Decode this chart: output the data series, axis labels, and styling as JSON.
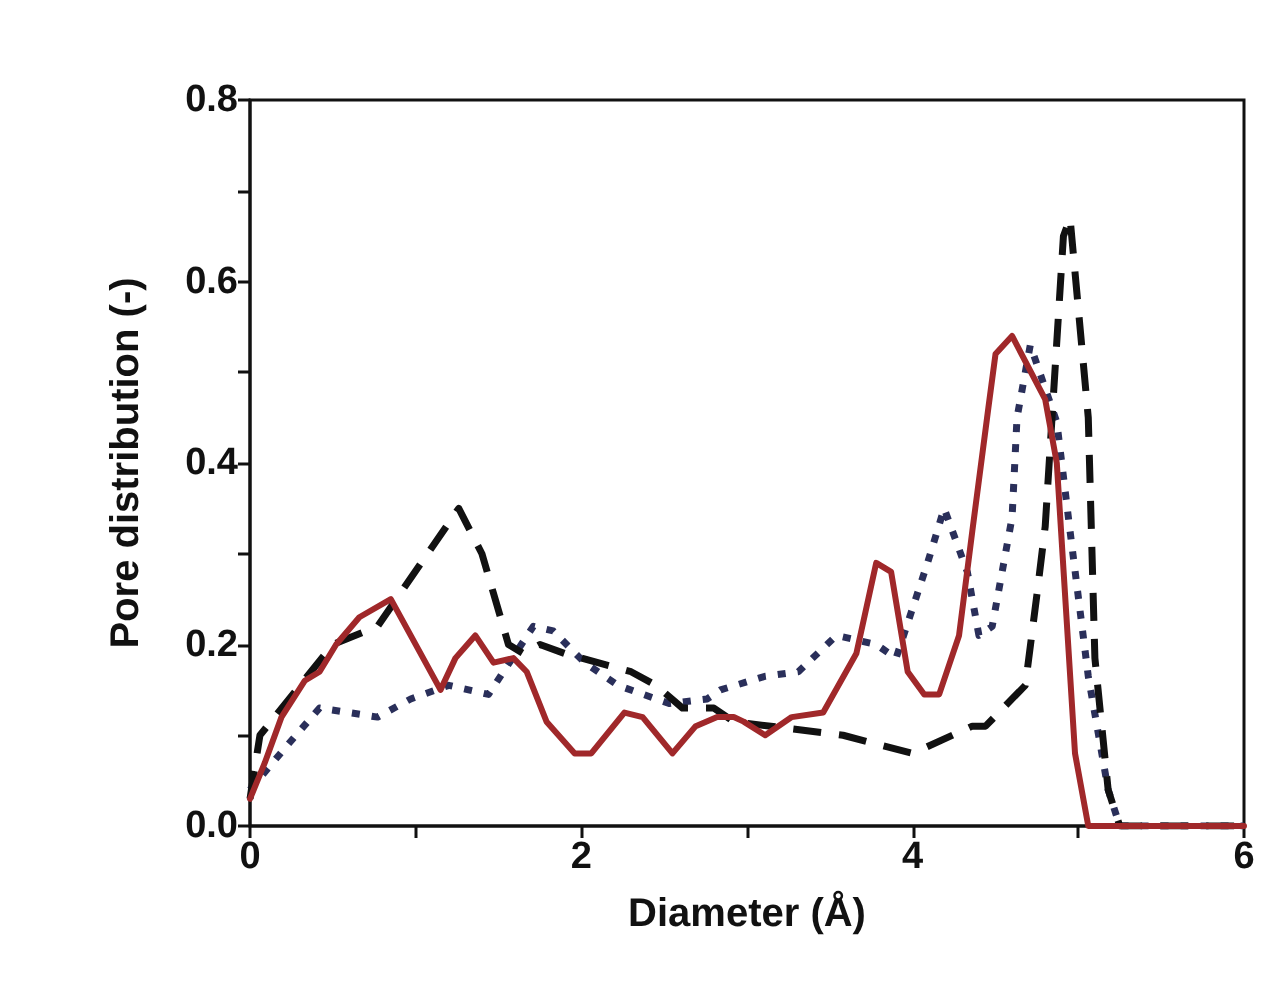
{
  "chart_data": {
    "type": "line",
    "xlabel": "Diameter (Å)",
    "ylabel": "Pore distribution (-)",
    "xlim": [
      0,
      6
    ],
    "xticks": [
      0,
      {
        "value": 1,
        "label": null
      },
      2,
      {
        "value": 3,
        "label": null
      },
      4,
      {
        "value": 5,
        "label": null
      },
      6
    ],
    "ylim": [
      0,
      0.8
    ],
    "yticks": [
      {
        "value": 0,
        "label": "0.0"
      },
      {
        "value": 0.1,
        "label": null
      },
      0.2,
      {
        "value": 0.3,
        "label": null
      },
      0.4,
      {
        "value": 0.5,
        "label": null
      },
      0.6,
      {
        "value": 0.7,
        "label": null
      },
      0.8
    ],
    "grid": false,
    "marker": "none",
    "series": [
      {
        "color": "#a0282a",
        "line_style": "solid",
        "x": [
          0,
          0.09,
          0.19,
          0.33,
          0.42,
          0.52,
          0.66,
          0.85,
          1.15,
          1.24,
          1.36,
          1.47,
          1.59,
          1.67,
          1.79,
          1.96,
          2.06,
          2.26,
          2.37,
          2.55,
          2.69,
          2.82,
          2.92,
          2.98,
          3.11,
          3.27,
          3.46,
          3.66,
          3.78,
          3.87,
          3.97,
          4.07,
          4.16,
          4.28,
          4.36,
          4.46,
          4.5,
          4.6,
          4.8,
          4.87,
          4.98,
          5.06,
          6
        ],
        "values": [
          0.03,
          0.07,
          0.12,
          0.16,
          0.17,
          0.2,
          0.23,
          0.25,
          0.15,
          0.185,
          0.21,
          0.18,
          0.185,
          0.17,
          0.115,
          0.08,
          0.08,
          0.125,
          0.12,
          0.08,
          0.11,
          0.12,
          0.12,
          0.115,
          0.1,
          0.12,
          0.125,
          0.19,
          0.29,
          0.28,
          0.17,
          0.145,
          0.145,
          0.21,
          0.325,
          0.465,
          0.52,
          0.54,
          0.47,
          0.4,
          0.08,
          0,
          0
        ]
      },
      {
        "color": "#111111",
        "line_style": "dashed",
        "x": [
          0,
          0.06,
          0.5,
          0.77,
          1.26,
          1.4,
          1.56,
          1.65,
          1.75,
          1.9,
          2.1,
          2.3,
          2.45,
          2.61,
          2.8,
          2.92,
          3.58,
          4.0,
          4.36,
          4.44,
          4.68,
          4.75,
          4.8,
          4.91,
          4.95,
          5.06,
          5.1,
          5.18,
          5.25,
          6
        ],
        "values": [
          0.03,
          0.1,
          0.2,
          0.22,
          0.35,
          0.3,
          0.2,
          0.19,
          0.2,
          0.19,
          0.18,
          0.17,
          0.155,
          0.13,
          0.13,
          0.115,
          0.1,
          0.08,
          0.11,
          0.11,
          0.155,
          0.255,
          0.33,
          0.65,
          0.67,
          0.45,
          0.185,
          0.04,
          0,
          0
        ]
      },
      {
        "color": "#2a2f5a",
        "line_style": "dotted",
        "x": [
          0,
          0.23,
          0.42,
          0.77,
          0.97,
          1.2,
          1.44,
          1.71,
          1.83,
          2.02,
          2.22,
          2.53,
          2.76,
          2.84,
          3.11,
          3.31,
          3.54,
          3.78,
          3.9,
          4.09,
          4.19,
          4.33,
          4.4,
          4.48,
          4.6,
          4.63,
          4.71,
          4.87,
          4.95,
          5.06,
          5.18,
          5.25,
          6
        ],
        "values": [
          0.04,
          0.09,
          0.13,
          0.12,
          0.14,
          0.155,
          0.145,
          0.22,
          0.215,
          0.18,
          0.155,
          0.135,
          0.14,
          0.15,
          0.165,
          0.17,
          0.21,
          0.2,
          0.185,
          0.29,
          0.35,
          0.28,
          0.21,
          0.22,
          0.34,
          0.45,
          0.53,
          0.445,
          0.325,
          0.165,
          0.04,
          0,
          0
        ]
      }
    ]
  }
}
